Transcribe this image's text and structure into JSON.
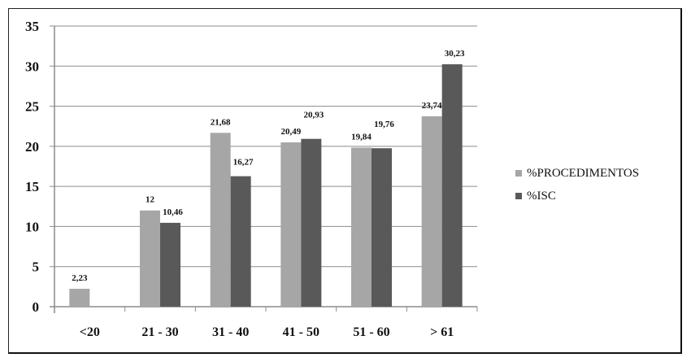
{
  "chart_data": {
    "type": "bar",
    "title": "",
    "xlabel": "",
    "ylabel": "",
    "ylim": [
      0,
      35
    ],
    "yticks": [
      "0",
      "5",
      "10",
      "15",
      "20",
      "25",
      "30",
      "35"
    ],
    "grid": true,
    "legend_position": "right",
    "categories": [
      "<20",
      "21 - 30",
      "31 - 40",
      "41 - 50",
      "51 - 60",
      "> 61"
    ],
    "series": [
      {
        "name": "%PROCEDIMENTOS",
        "color": "#a6a6a6",
        "values": [
          2.23,
          12,
          21.68,
          20.49,
          19.84,
          23.74
        ],
        "labels": [
          "2,23",
          "12",
          "21,68",
          "20,49",
          "19,84",
          "23,74"
        ]
      },
      {
        "name": "%ISC",
        "color": "#595959",
        "values": [
          null,
          10.46,
          16.27,
          20.93,
          19.76,
          30.23
        ],
        "labels": [
          "",
          "10,46",
          "16,27",
          "20,93",
          "19,76",
          "30,23"
        ]
      }
    ]
  },
  "legend": {
    "items": [
      {
        "label": "%PROCEDIMENTOS",
        "color": "#a6a6a6"
      },
      {
        "label": "%ISC",
        "color": "#595959"
      }
    ]
  }
}
